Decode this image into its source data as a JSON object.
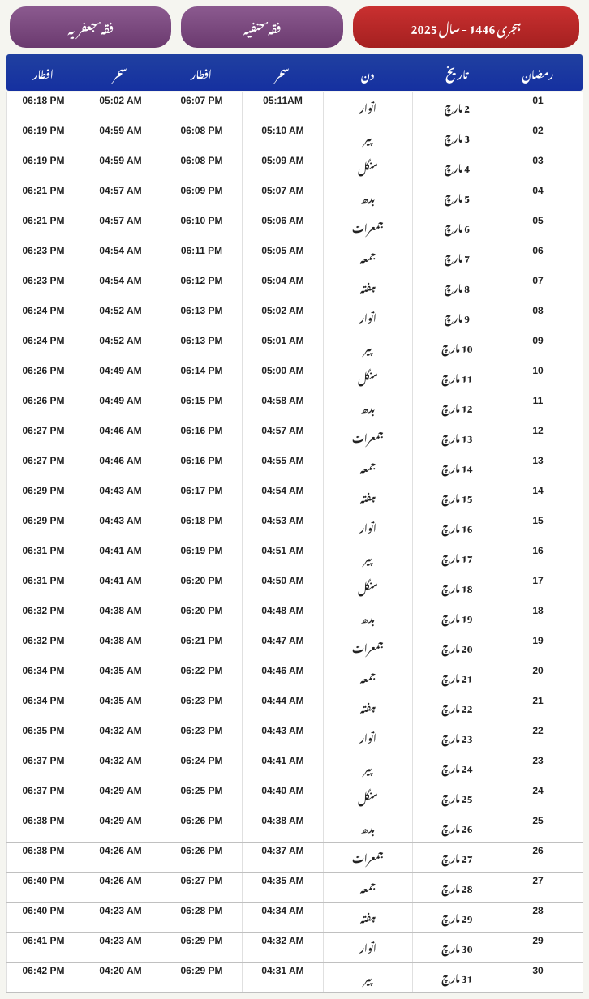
{
  "header": {
    "pill_left": "فقہ ٔ جعفریہ",
    "pill_center": "فقہ ٔ حنفیہ",
    "pill_right": "ہجری 1446 - سال 2025"
  },
  "columns": {
    "iftar2": "افطار",
    "sehr2": "سحر",
    "iftar1": "افطار",
    "sehr1": "سحر",
    "day": "دن",
    "date": "تاریخ",
    "ramadan": "رمضان"
  },
  "rows": [
    {
      "iftar2": "06:18 PM",
      "sehr2": "05:02 AM",
      "iftar1": "06:07 PM",
      "sehr1": "05:11AM",
      "day": "اتوار",
      "date": "2 مارچ",
      "ramadan": "01"
    },
    {
      "iftar2": "06:19 PM",
      "sehr2": "04:59 AM",
      "iftar1": "06:08 PM",
      "sehr1": "05:10 AM",
      "day": "پیر",
      "date": "3 مارچ",
      "ramadan": "02"
    },
    {
      "iftar2": "06:19 PM",
      "sehr2": "04:59 AM",
      "iftar1": "06:08 PM",
      "sehr1": "05:09 AM",
      "day": "منگل",
      "date": "4 مارچ",
      "ramadan": "03"
    },
    {
      "iftar2": "06:21 PM",
      "sehr2": "04:57 AM",
      "iftar1": "06:09 PM",
      "sehr1": "05:07 AM",
      "day": "بدھ",
      "date": "5 مارچ",
      "ramadan": "04"
    },
    {
      "iftar2": "06:21 PM",
      "sehr2": "04:57 AM",
      "iftar1": "06:10 PM",
      "sehr1": "05:06 AM",
      "day": "جمعرات",
      "date": "6 مارچ",
      "ramadan": "05"
    },
    {
      "iftar2": "06:23 PM",
      "sehr2": "04:54 AM",
      "iftar1": "06:11 PM",
      "sehr1": "05:05 AM",
      "day": "جمعہ",
      "date": "7 مارچ",
      "ramadan": "06"
    },
    {
      "iftar2": "06:23 PM",
      "sehr2": "04:54 AM",
      "iftar1": "06:12 PM",
      "sehr1": "05:04 AM",
      "day": "ہفتہ",
      "date": "8 مارچ",
      "ramadan": "07"
    },
    {
      "iftar2": "06:24 PM",
      "sehr2": "04:52 AM",
      "iftar1": "06:13 PM",
      "sehr1": "05:02 AM",
      "day": "اتوار",
      "date": "9 مارچ",
      "ramadan": "08"
    },
    {
      "iftar2": "06:24 PM",
      "sehr2": "04:52 AM",
      "iftar1": "06:13 PM",
      "sehr1": "05:01 AM",
      "day": "پیر",
      "date": "10 مارچ",
      "ramadan": "09"
    },
    {
      "iftar2": "06:26 PM",
      "sehr2": "04:49 AM",
      "iftar1": "06:14 PM",
      "sehr1": "05:00 AM",
      "day": "منگل",
      "date": "11 مارچ",
      "ramadan": "10"
    },
    {
      "iftar2": "06:26 PM",
      "sehr2": "04:49 AM",
      "iftar1": "06:15 PM",
      "sehr1": "04:58 AM",
      "day": "بدھ",
      "date": "12 مارچ",
      "ramadan": "11"
    },
    {
      "iftar2": "06:27 PM",
      "sehr2": "04:46 AM",
      "iftar1": "06:16 PM",
      "sehr1": "04:57 AM",
      "day": "جمعرات",
      "date": "13 مارچ",
      "ramadan": "12"
    },
    {
      "iftar2": "06:27 PM",
      "sehr2": "04:46 AM",
      "iftar1": "06:16 PM",
      "sehr1": "04:55 AM",
      "day": "جمعہ",
      "date": "14 مارچ",
      "ramadan": "13"
    },
    {
      "iftar2": "06:29 PM",
      "sehr2": "04:43 AM",
      "iftar1": "06:17 PM",
      "sehr1": "04:54 AM",
      "day": "ہفتہ",
      "date": "15 مارچ",
      "ramadan": "14"
    },
    {
      "iftar2": "06:29 PM",
      "sehr2": "04:43 AM",
      "iftar1": "06:18 PM",
      "sehr1": "04:53 AM",
      "day": "اتوار",
      "date": "16 مارچ",
      "ramadan": "15"
    },
    {
      "iftar2": "06:31 PM",
      "sehr2": "04:41 AM",
      "iftar1": "06:19 PM",
      "sehr1": "04:51 AM",
      "day": "پیر",
      "date": "17 مارچ",
      "ramadan": "16"
    },
    {
      "iftar2": "06:31 PM",
      "sehr2": "04:41 AM",
      "iftar1": "06:20 PM",
      "sehr1": "04:50 AM",
      "day": "منگل",
      "date": "18 مارچ",
      "ramadan": "17"
    },
    {
      "iftar2": "06:32 PM",
      "sehr2": "04:38 AM",
      "iftar1": "06:20 PM",
      "sehr1": "04:48 AM",
      "day": "بدھ",
      "date": "19 مارچ",
      "ramadan": "18"
    },
    {
      "iftar2": "06:32 PM",
      "sehr2": "04:38 AM",
      "iftar1": "06:21 PM",
      "sehr1": "04:47 AM",
      "day": "جمعرات",
      "date": "20 مارچ",
      "ramadan": "19"
    },
    {
      "iftar2": "06:34 PM",
      "sehr2": "04:35 AM",
      "iftar1": "06:22 PM",
      "sehr1": "04:46 AM",
      "day": "جمعہ",
      "date": "21 مارچ",
      "ramadan": "20"
    },
    {
      "iftar2": "06:34 PM",
      "sehr2": "04:35 AM",
      "iftar1": "06:23 PM",
      "sehr1": "04:44 AM",
      "day": "ہفتہ",
      "date": "22 مارچ",
      "ramadan": "21"
    },
    {
      "iftar2": "06:35 PM",
      "sehr2": "04:32 AM",
      "iftar1": "06:23 PM",
      "sehr1": "04:43 AM",
      "day": "اتوار",
      "date": "23 مارچ",
      "ramadan": "22"
    },
    {
      "iftar2": "06:37 PM",
      "sehr2": "04:32 AM",
      "iftar1": "06:24 PM",
      "sehr1": "04:41 AM",
      "day": "پیر",
      "date": "24 مارچ",
      "ramadan": "23"
    },
    {
      "iftar2": "06:37 PM",
      "sehr2": "04:29 AM",
      "iftar1": "06:25 PM",
      "sehr1": "04:40 AM",
      "day": "منگل",
      "date": "25 مارچ",
      "ramadan": "24"
    },
    {
      "iftar2": "06:38 PM",
      "sehr2": "04:29 AM",
      "iftar1": "06:26 PM",
      "sehr1": "04:38 AM",
      "day": "بدھ",
      "date": "26 مارچ",
      "ramadan": "25"
    },
    {
      "iftar2": "06:38 PM",
      "sehr2": "04:26 AM",
      "iftar1": "06:26 PM",
      "sehr1": "04:37 AM",
      "day": "جمعرات",
      "date": "27 مارچ",
      "ramadan": "26"
    },
    {
      "iftar2": "06:40 PM",
      "sehr2": "04:26 AM",
      "iftar1": "06:27 PM",
      "sehr1": "04:35 AM",
      "day": "جمعہ",
      "date": "28 مارچ",
      "ramadan": "27"
    },
    {
      "iftar2": "06:40 PM",
      "sehr2": "04:23 AM",
      "iftar1": "06:28 PM",
      "sehr1": "04:34 AM",
      "day": "ہفتہ",
      "date": "29 مارچ",
      "ramadan": "28"
    },
    {
      "iftar2": "06:41 PM",
      "sehr2": "04:23 AM",
      "iftar1": "06:29 PM",
      "sehr1": "04:32 AM",
      "day": "اتوار",
      "date": "30 مارچ",
      "ramadan": "29"
    },
    {
      "iftar2": "06:42 PM",
      "sehr2": "04:20 AM",
      "iftar1": "06:29 PM",
      "sehr1": "04:31 AM",
      "day": "پیر",
      "date": "31 مارچ",
      "ramadan": "30"
    }
  ]
}
